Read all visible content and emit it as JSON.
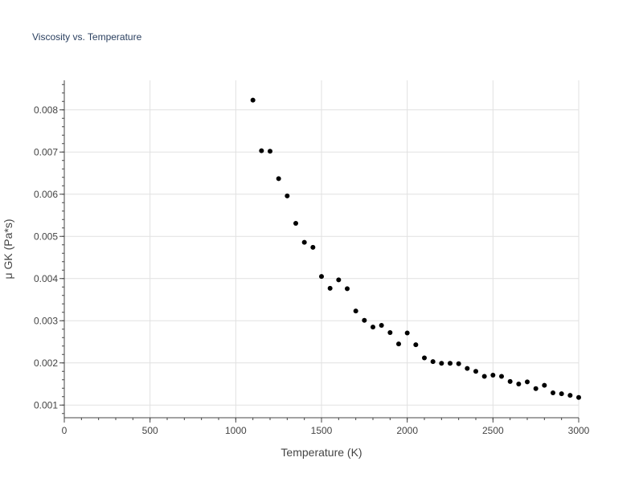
{
  "chart_data": {
    "type": "scatter",
    "title": "Viscosity vs. Temperature",
    "xlabel": "Temperature (K)",
    "ylabel": "μ GK (Pa*s)",
    "xlim": [
      0,
      3000
    ],
    "ylim": [
      0.0007,
      0.0087
    ],
    "x_ticks": [
      0,
      500,
      1000,
      1500,
      2000,
      2500,
      3000
    ],
    "x_tick_labels": [
      "0",
      "500",
      "1000",
      "1500",
      "2000",
      "2500",
      "3000"
    ],
    "y_ticks": [
      0.001,
      0.002,
      0.003,
      0.004,
      0.005,
      0.006,
      0.007,
      0.008
    ],
    "y_tick_labels": [
      "0.001",
      "0.002",
      "0.003",
      "0.004",
      "0.005",
      "0.006",
      "0.007",
      "0.008"
    ],
    "grid": true,
    "marker_color": "#000000",
    "x": [
      1100,
      1150,
      1200,
      1250,
      1300,
      1350,
      1400,
      1450,
      1500,
      1550,
      1600,
      1650,
      1700,
      1750,
      1800,
      1850,
      1900,
      1950,
      2000,
      2050,
      2100,
      2150,
      2200,
      2250,
      2300,
      2350,
      2400,
      2450,
      2500,
      2550,
      2600,
      2650,
      2700,
      2750,
      2800,
      2850,
      2900,
      2950,
      3000
    ],
    "y": [
      0.00823,
      0.00703,
      0.00702,
      0.00637,
      0.00596,
      0.00531,
      0.00486,
      0.00474,
      0.00405,
      0.00377,
      0.00397,
      0.00376,
      0.00323,
      0.00301,
      0.00285,
      0.00289,
      0.00272,
      0.00245,
      0.00271,
      0.00243,
      0.00212,
      0.00203,
      0.00199,
      0.00199,
      0.00198,
      0.00187,
      0.0018,
      0.00168,
      0.00171,
      0.00168,
      0.00156,
      0.0015,
      0.00155,
      0.00139,
      0.00147,
      0.00129,
      0.00127,
      0.00123,
      0.00118
    ]
  }
}
